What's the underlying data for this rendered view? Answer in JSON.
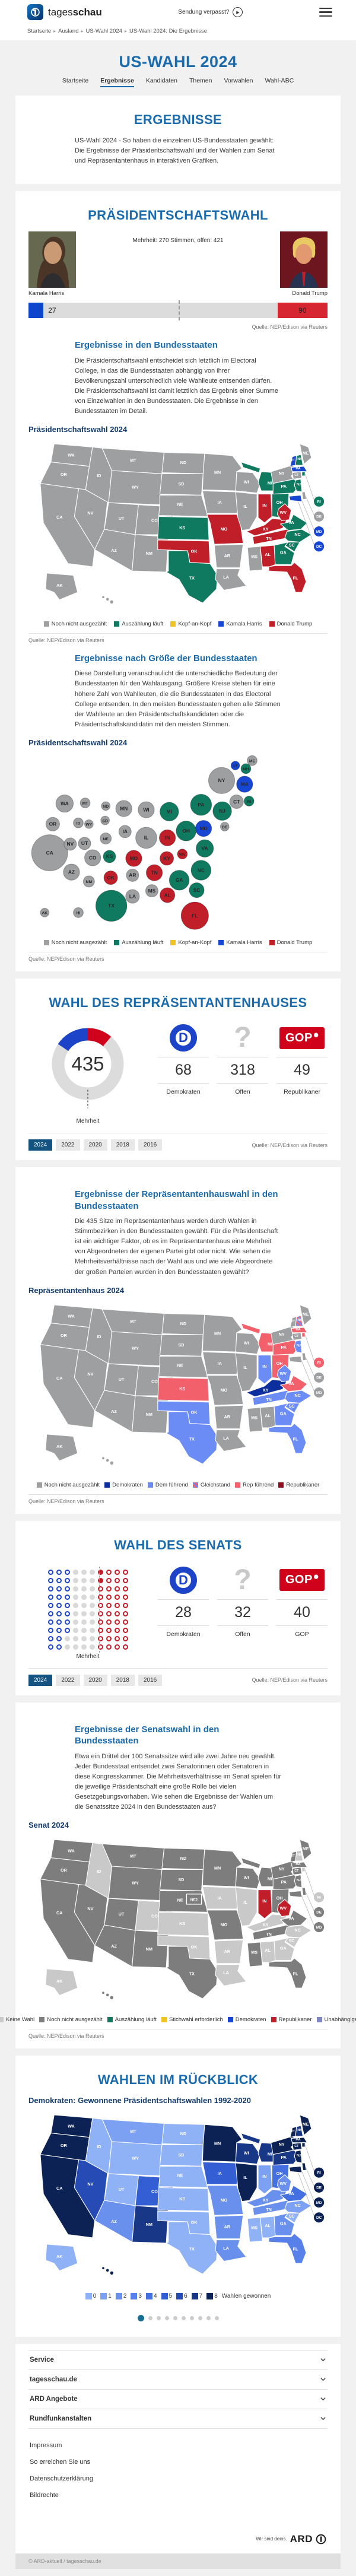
{
  "header": {
    "brand_prefix": "tages",
    "brand_suffix": "schau",
    "missed_show": "Sendung verpasst?",
    "menu_icon": "hamburger-icon",
    "play_icon": "play-icon"
  },
  "breadcrumb": [
    "Startseite",
    "Ausland",
    "US-Wahl 2024",
    "US-Wahl 2024: Die Ergebnisse"
  ],
  "page": {
    "title": "US-WAHL 2024",
    "tabs": [
      {
        "label": "Startseite",
        "active": false
      },
      {
        "label": "Ergebnisse",
        "active": true
      },
      {
        "label": "Kandidaten",
        "active": false
      },
      {
        "label": "Themen",
        "active": false
      },
      {
        "label": "Vorwahlen",
        "active": false
      },
      {
        "label": "Wahl-ABC",
        "active": false
      }
    ]
  },
  "intro": {
    "title": "ERGEBNISSE",
    "text": "US-Wahl 2024 - So haben die einzelnen US-Bundesstaaten gewählt: Die Ergebnisse der Präsidentschaftswahl und der Wahlen zum Senat und Repräsentantenhaus in interaktiven Grafiken."
  },
  "president": {
    "title": "PRÄSIDENTSCHAFTSWAHL",
    "majority_line": "Mehrheit: 270 Stimmen, offen: 421",
    "total": 538,
    "majority": 270,
    "candidates": [
      {
        "name": "Kamala Harris",
        "votes": 27,
        "color": "#0d45cd"
      },
      {
        "name": "Donald Trump",
        "votes": 90,
        "color": "#d62631"
      }
    ],
    "source": "Quelle: NEP/Edison via Reuters"
  },
  "states_section": {
    "title": "Ergebnisse in den Bundesstaaten",
    "text": "Die Präsidentschaftswahl entscheidet sich letztlich im Electoral College, in das die Bundesstaaten abhängig von ihrer Bevölkerungszahl unterschiedlich viele Wahlleute entsenden dürfen. Die Präsidentschaftswahl ist damit letztlich das Ergebnis einer Summe von Einzelwahlen in den Bundesstaaten. Die Ergebnisse in den Bundesstaaten im Detail.",
    "map_title": "Präsidentschaftswahl 2024",
    "legend": [
      {
        "label": "Noch nicht ausgezählt",
        "color": "#9d9fa0"
      },
      {
        "label": "Auszählung läuft",
        "color": "#0f7a60"
      },
      {
        "label": "Kopf-an-Kopf",
        "color": "#f0c420"
      },
      {
        "label": "Kamala Harris",
        "color": "#1747d2"
      },
      {
        "label": "Donald Trump",
        "color": "#c01e29"
      }
    ],
    "results": {
      "counting": [
        "MI",
        "OH",
        "PA",
        "NJ",
        "VA",
        "NC",
        "SC",
        "GA",
        "KS",
        "TX",
        "NH",
        "RI"
      ],
      "harris": [
        "VT",
        "MA",
        "MD",
        "DC"
      ],
      "trump": [
        "IN",
        "MO",
        "KY",
        "WV",
        "TN",
        "OK",
        "AL",
        "FL"
      ]
    },
    "source": "Quelle: NEP/Edison via Reuters"
  },
  "size_section": {
    "title": "Ergebnisse nach Größe der Bundesstaaten",
    "text": "Diese Darstellung veranschaulicht die unterschiedliche Bedeutung der Bundesstaaten für den Wahlausgang. Größere Kreise stehen für eine höhere Zahl von Wahlleuten, die die Bundesstaaten in das Electoral College entsenden. In den meisten Bundesstaaten gehen alle Stimmen der Wahlleute an den Präsidentschaftskandidaten oder die Präsidentschaftskandidatin mit den meisten Stimmen.",
    "map_title": "Präsidentschaftswahl 2024",
    "source": "Quelle: NEP/Edison via Reuters"
  },
  "house": {
    "title": "WAHL DES REPRÄSENTANTENHAUSES",
    "total": 435,
    "majority_label": "Mehrheit",
    "stats": [
      {
        "logo": "dem",
        "value": 68,
        "label": "Demokraten"
      },
      {
        "logo": "open",
        "value": 318,
        "label": "Offen"
      },
      {
        "logo": "gop",
        "value": 49,
        "label": "Republikaner"
      }
    ],
    "years": [
      "2024",
      "2022",
      "2020",
      "2018",
      "2016"
    ],
    "active_year": "2024",
    "source": "Quelle: NEP/Edison via Reuters"
  },
  "house_states": {
    "title": "Ergebnisse der Repräsentantenhauswahl in den Bundesstaaten",
    "text": "Die 435 Sitze im Repräsentantenhaus werden durch Wahlen in Stimmbezirken in den Bundesstaaten gewählt. Für die Präsidentschaft ist ein wichtiger Faktor, ob es im Repräsentantenhaus eine Mehrheit von Abgeordneten der eigenen Partei gibt oder nicht. Wie sehen die Mehrheitsverhältnisse nach der Wahl aus und wie viele Abgeordnete der großen Parteien wurden in den Bundesstaaten gewählt?",
    "map_title": "Repräsentantenhaus 2024",
    "legend": [
      {
        "label": "Noch nicht ausgezählt",
        "color": "#9d9fa0"
      },
      {
        "label": "Demokraten",
        "color": "#0d2f9e"
      },
      {
        "label": "Dem führend",
        "color": "#6c8cf5"
      },
      {
        "label": "Gleichstand",
        "striped": true
      },
      {
        "label": "Rep führend",
        "color": "#f2606c"
      },
      {
        "label": "Republikaner",
        "color": "#8f0f1d"
      }
    ],
    "results": {
      "dem": [
        "KY"
      ],
      "dem_lead": [
        "IN",
        "WV",
        "TX",
        "OK",
        "TN",
        "NC",
        "SC",
        "GA",
        "FL",
        "NJ"
      ],
      "tie": [
        "NH"
      ],
      "rep_lead": [
        "MI",
        "PA",
        "OH",
        "KS",
        "VA",
        "MA",
        "RI"
      ]
    },
    "source": "Quelle: NEP/Edison via Reuters"
  },
  "senate": {
    "title": "WAHL DES SENATS",
    "majority_label": "Mehrheit",
    "stats": [
      {
        "logo": "dem",
        "value": 28,
        "label": "Demokraten"
      },
      {
        "logo": "open",
        "value": 32,
        "label": "Offen"
      },
      {
        "logo": "gop",
        "value": 40,
        "label": "GOP"
      }
    ],
    "years": [
      "2024",
      "2022",
      "2020",
      "2018",
      "2016"
    ],
    "active_year": "2024",
    "source": "Quelle: NEP/Edison via Reuters"
  },
  "senate_states": {
    "title": "Ergebnisse der Senatswahl in den Bundesstaaten",
    "text": "Etwa ein Drittel der 100 Senatssitze wird alle zwei Jahre neu gewählt. Jeder Bundesstaat entsendet zwei Senatorinnen oder Senatoren in diese Kongresskammer. Die Mehrheitsverhältnisse im Senat spielen für die jeweilige Präsidentschaft eine große Rolle bei vielen Gesetzgebungsvorhaben. Wie sehen die Ergebnisse der Wahlen um die Senatssitze 2024 in den Bundesstaaten aus?",
    "map_title": "Senat 2024",
    "legend": [
      {
        "label": "Keine Wahl",
        "color": "#c9c9c9"
      },
      {
        "label": "Noch nicht ausgezählt",
        "color": "#7d7d7d"
      },
      {
        "label": "Auszählung läuft",
        "color": "#0f7a60"
      },
      {
        "label": "Stichwahl erforderlich",
        "color": "#f0c420"
      },
      {
        "label": "Demokraten",
        "color": "#1747d2"
      },
      {
        "label": "Republikaner",
        "color": "#c01e29"
      },
      {
        "label": "Unabhängige",
        "color": "#8087c0"
      }
    ],
    "results": {
      "rep": [
        "IN",
        "WV"
      ],
      "none": [
        "ID",
        "IA",
        "CO",
        "KS",
        "OK",
        "AR",
        "LA",
        "AL",
        "GA",
        "SC",
        "NC",
        "KY",
        "IL",
        "AK",
        "NH",
        "RI"
      ]
    },
    "ne2_label": "NE2",
    "source": "Quelle: NEP/Edison via Reuters"
  },
  "review": {
    "title": "WAHLEN IM RÜCKBLICK",
    "subtitle": "Demokraten: Gewonnene Präsidentschaftswahlen 1992-2020",
    "scale_label": "Wahlen gewonnen",
    "scale_values": [
      0,
      1,
      2,
      3,
      4,
      5,
      6,
      7,
      8
    ],
    "scale_colors": [
      "#8fb1f5",
      "#7da1f2",
      "#6a90ee",
      "#5780e9",
      "#4570e2",
      "#345fd4",
      "#264bb4",
      "#183786",
      "#0c2254"
    ],
    "wins": {
      "8": [
        "CA",
        "CT",
        "DE",
        "DC",
        "HI",
        "IL",
        "MA",
        "MD",
        "ME",
        "MN",
        "NJ",
        "NY",
        "OR",
        "RI",
        "VT",
        "WA"
      ],
      "7": [
        "MI",
        "NH",
        "NM",
        "PA",
        "WI"
      ],
      "6": [
        "NV"
      ],
      "5": [
        "CO",
        "IA"
      ],
      "4": [
        "OH",
        "VA"
      ],
      "3": [
        "FL"
      ],
      "2": [
        "AR",
        "AZ",
        "GA",
        "KY",
        "LA",
        "MO",
        "TN",
        "WV"
      ],
      "1": [
        "IN",
        "MT",
        "NC"
      ],
      "0": [
        "AK",
        "AL",
        "ID",
        "KS",
        "MS",
        "ND",
        "NE",
        "OK",
        "SC",
        "SD",
        "TX",
        "UT",
        "WY"
      ]
    },
    "carousel": {
      "count": 10,
      "active": 0
    }
  },
  "footer": {
    "accordions": [
      "Service",
      "tagesschau.de",
      "ARD Angebote",
      "Rundfunkanstalten"
    ],
    "links": [
      "Impressum",
      "So erreichen Sie uns",
      "Datenschutzerklärung",
      "Bildrechte"
    ],
    "ard_claim": "Wir sind deins.",
    "ard_brand": "ARD",
    "copyright": "© ARD-aktuell / tagesschau.de"
  },
  "palette": {
    "open": "#9d9fa0",
    "counting": "#0f7a60",
    "tossup": "#f0c420",
    "harris": "#1747d2",
    "trump": "#c01e29",
    "house_dem": "#0d2f9e",
    "house_dem_lead": "#6c8cf5",
    "house_rep_lead": "#f2606c",
    "house_rep": "#8f0f1d",
    "sen_none": "#c9c9c9",
    "sen_pending": "#7d7d7d"
  },
  "chart_data": [
    {
      "type": "bar",
      "title": "Präsidentschaftswahl Electoral College",
      "categories": [
        "Kamala Harris",
        "Offen",
        "Donald Trump"
      ],
      "values": [
        27,
        421,
        90
      ],
      "total": 538,
      "majority": 270
    },
    {
      "type": "pie",
      "title": "Wahl des Repräsentantenhauses",
      "categories": [
        "Demokraten",
        "Offen",
        "Republikaner"
      ],
      "values": [
        68,
        318,
        49
      ],
      "total": 435
    },
    {
      "type": "pie",
      "title": "Wahl des Senats",
      "categories": [
        "Demokraten",
        "Offen",
        "GOP"
      ],
      "values": [
        28,
        32,
        40
      ],
      "total": 100
    },
    {
      "type": "heatmap",
      "title": "Demokraten: Gewonnene Präsidentschaftswahlen 1992-2020",
      "range": [
        0,
        8
      ]
    }
  ]
}
